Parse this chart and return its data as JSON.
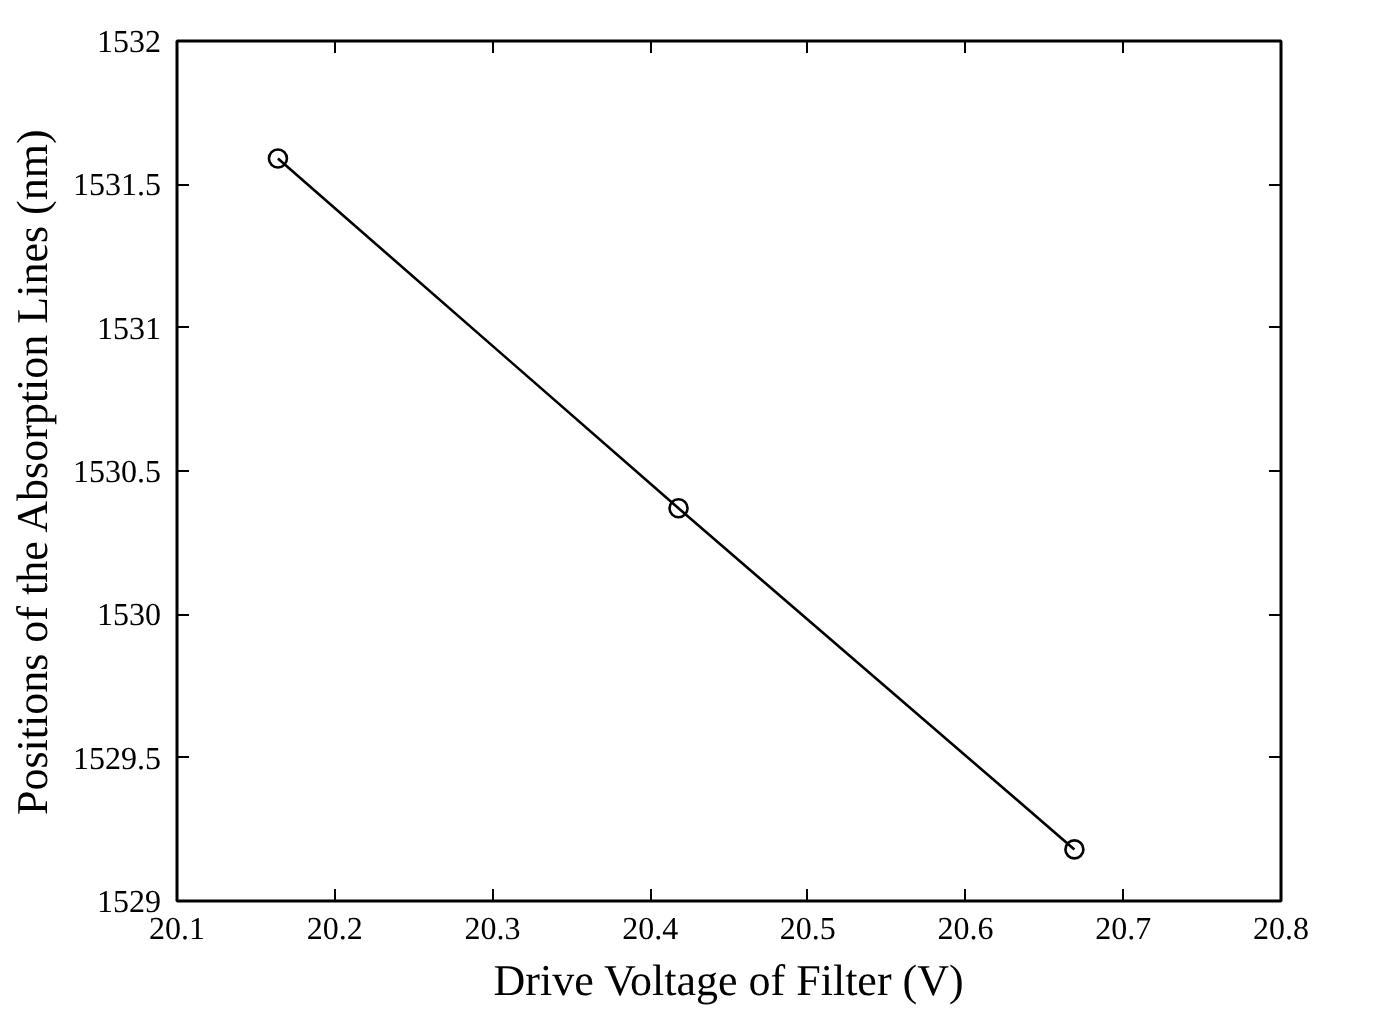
{
  "chart_data": {
    "type": "line",
    "xlabel": "Drive Voltage of Filter (V)",
    "ylabel": "Positions of the Absorption Lines (nm)",
    "x": [
      20.164,
      20.418,
      20.669
    ],
    "series": [
      {
        "color": "#000000",
        "values": [
          1531.59,
          1530.37,
          1529.18
        ]
      }
    ],
    "xlim": [
      20.1,
      20.8
    ],
    "ylim": [
      1529,
      1532
    ],
    "xticks": [
      20.1,
      20.2,
      20.3,
      20.4,
      20.5,
      20.6,
      20.7,
      20.8
    ],
    "yticks": [
      1529,
      1529.5,
      1530,
      1530.5,
      1531,
      1531.5,
      1532
    ],
    "marker": "circle",
    "line_style": "solid"
  }
}
